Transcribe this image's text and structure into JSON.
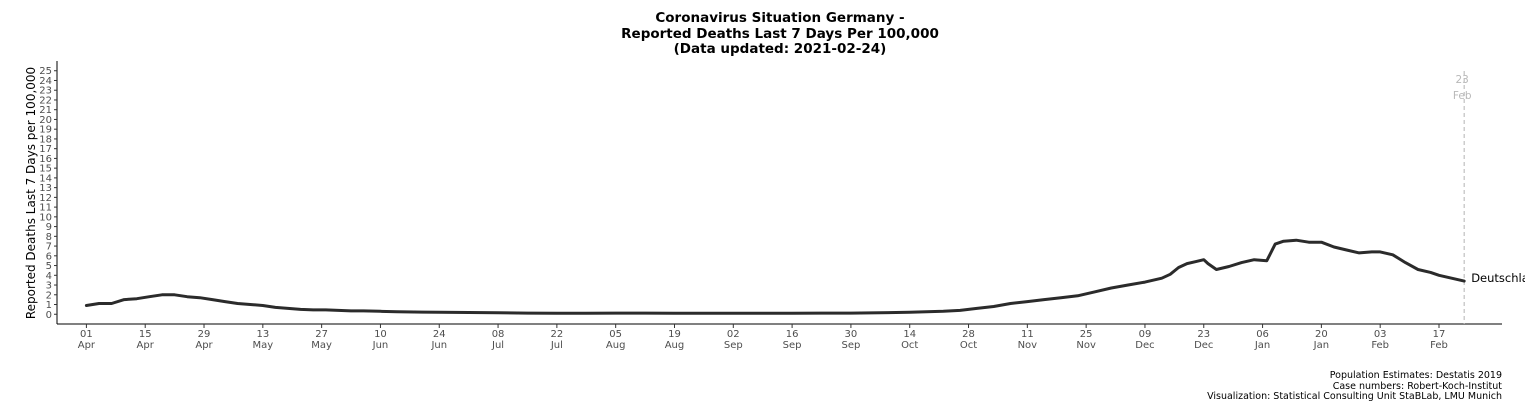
{
  "title_lines": [
    "Coronavirus Situation Germany -",
    "Reported Deaths Last 7 Days Per 100,000",
    "(Data updated: 2021-02-24)"
  ],
  "captions": [
    "Population Estimates: Destatis 2019",
    "Case numbers: Robert-Koch-Institut",
    "Visualization: Statistical Consulting Unit StaBLab, LMU Munich"
  ],
  "chart_data": {
    "type": "line",
    "title": "Coronavirus Situation Germany - Reported Deaths Last 7 Days Per 100,000 (Data updated: 2021-02-24)",
    "ylabel": "Reported Deaths Last 7 Days per 100,000",
    "xlabel": "",
    "ylim": [
      -1,
      26
    ],
    "xlim": [
      "2020-03-25",
      "2021-03-04"
    ],
    "grid": false,
    "y_ticks": [
      0,
      1,
      2,
      3,
      4,
      5,
      6,
      7,
      8,
      9,
      10,
      11,
      12,
      13,
      14,
      15,
      16,
      17,
      18,
      19,
      20,
      21,
      22,
      23,
      24,
      25
    ],
    "x_ticks": [
      {
        "date": "2020-04-01",
        "day": "01",
        "month": "Apr"
      },
      {
        "date": "2020-04-15",
        "day": "15",
        "month": "Apr"
      },
      {
        "date": "2020-04-29",
        "day": "29",
        "month": "Apr"
      },
      {
        "date": "2020-05-13",
        "day": "13",
        "month": "May"
      },
      {
        "date": "2020-05-27",
        "day": "27",
        "month": "May"
      },
      {
        "date": "2020-06-10",
        "day": "10",
        "month": "Jun"
      },
      {
        "date": "2020-06-24",
        "day": "24",
        "month": "Jun"
      },
      {
        "date": "2020-07-08",
        "day": "08",
        "month": "Jul"
      },
      {
        "date": "2020-07-22",
        "day": "22",
        "month": "Jul"
      },
      {
        "date": "2020-08-05",
        "day": "05",
        "month": "Aug"
      },
      {
        "date": "2020-08-19",
        "day": "19",
        "month": "Aug"
      },
      {
        "date": "2020-09-02",
        "day": "02",
        "month": "Sep"
      },
      {
        "date": "2020-09-16",
        "day": "16",
        "month": "Sep"
      },
      {
        "date": "2020-09-30",
        "day": "30",
        "month": "Sep"
      },
      {
        "date": "2020-10-14",
        "day": "14",
        "month": "Oct"
      },
      {
        "date": "2020-10-28",
        "day": "28",
        "month": "Oct"
      },
      {
        "date": "2020-11-11",
        "day": "11",
        "month": "Nov"
      },
      {
        "date": "2020-11-25",
        "day": "25",
        "month": "Nov"
      },
      {
        "date": "2020-12-09",
        "day": "09",
        "month": "Dec"
      },
      {
        "date": "2020-12-23",
        "day": "23",
        "month": "Dec"
      },
      {
        "date": "2021-01-06",
        "day": "06",
        "month": "Jan"
      },
      {
        "date": "2021-01-20",
        "day": "20",
        "month": "Jan"
      },
      {
        "date": "2021-02-03",
        "day": "03",
        "month": "Feb"
      },
      {
        "date": "2021-02-17",
        "day": "17",
        "month": "Feb"
      }
    ],
    "reference_line": {
      "date": "2021-02-23",
      "label_day": "23",
      "label_month": "Feb",
      "color": "#c0c0c0"
    },
    "series": [
      {
        "name": "Deutschland",
        "color": "#2b2b2b",
        "points": [
          [
            "2020-04-01",
            0.9
          ],
          [
            "2020-04-04",
            1.1
          ],
          [
            "2020-04-07",
            1.1
          ],
          [
            "2020-04-10",
            1.5
          ],
          [
            "2020-04-13",
            1.6
          ],
          [
            "2020-04-16",
            1.8
          ],
          [
            "2020-04-19",
            2.0
          ],
          [
            "2020-04-22",
            2.0
          ],
          [
            "2020-04-25",
            1.8
          ],
          [
            "2020-04-28",
            1.7
          ],
          [
            "2020-05-01",
            1.5
          ],
          [
            "2020-05-04",
            1.3
          ],
          [
            "2020-05-07",
            1.1
          ],
          [
            "2020-05-10",
            1.0
          ],
          [
            "2020-05-13",
            0.9
          ],
          [
            "2020-05-16",
            0.7
          ],
          [
            "2020-05-19",
            0.6
          ],
          [
            "2020-05-22",
            0.5
          ],
          [
            "2020-05-25",
            0.45
          ],
          [
            "2020-05-28",
            0.45
          ],
          [
            "2020-05-31",
            0.4
          ],
          [
            "2020-06-03",
            0.35
          ],
          [
            "2020-06-06",
            0.35
          ],
          [
            "2020-06-10",
            0.3
          ],
          [
            "2020-06-14",
            0.25
          ],
          [
            "2020-06-20",
            0.22
          ],
          [
            "2020-06-24",
            0.2
          ],
          [
            "2020-07-01",
            0.18
          ],
          [
            "2020-07-08",
            0.15
          ],
          [
            "2020-07-15",
            0.12
          ],
          [
            "2020-07-22",
            0.1
          ],
          [
            "2020-07-29",
            0.1
          ],
          [
            "2020-08-05",
            0.12
          ],
          [
            "2020-08-12",
            0.12
          ],
          [
            "2020-08-19",
            0.1
          ],
          [
            "2020-08-26",
            0.1
          ],
          [
            "2020-09-02",
            0.1
          ],
          [
            "2020-09-09",
            0.1
          ],
          [
            "2020-09-16",
            0.1
          ],
          [
            "2020-09-23",
            0.12
          ],
          [
            "2020-09-30",
            0.12
          ],
          [
            "2020-10-07",
            0.15
          ],
          [
            "2020-10-14",
            0.2
          ],
          [
            "2020-10-18",
            0.25
          ],
          [
            "2020-10-22",
            0.3
          ],
          [
            "2020-10-26",
            0.4
          ],
          [
            "2020-10-30",
            0.6
          ],
          [
            "2020-11-03",
            0.8
          ],
          [
            "2020-11-07",
            1.1
          ],
          [
            "2020-11-11",
            1.3
          ],
          [
            "2020-11-15",
            1.5
          ],
          [
            "2020-11-19",
            1.7
          ],
          [
            "2020-11-23",
            1.9
          ],
          [
            "2020-11-27",
            2.3
          ],
          [
            "2020-12-01",
            2.7
          ],
          [
            "2020-12-05",
            3.0
          ],
          [
            "2020-12-09",
            3.3
          ],
          [
            "2020-12-13",
            3.7
          ],
          [
            "2020-12-15",
            4.1
          ],
          [
            "2020-12-17",
            4.8
          ],
          [
            "2020-12-19",
            5.2
          ],
          [
            "2020-12-21",
            5.4
          ],
          [
            "2020-12-23",
            5.6
          ],
          [
            "2020-12-24",
            5.2
          ],
          [
            "2020-12-26",
            4.6
          ],
          [
            "2020-12-29",
            4.9
          ],
          [
            "2021-01-01",
            5.3
          ],
          [
            "2021-01-04",
            5.6
          ],
          [
            "2021-01-07",
            5.5
          ],
          [
            "2021-01-09",
            7.2
          ],
          [
            "2021-01-11",
            7.5
          ],
          [
            "2021-01-14",
            7.6
          ],
          [
            "2021-01-17",
            7.4
          ],
          [
            "2021-01-20",
            7.4
          ],
          [
            "2021-01-23",
            6.9
          ],
          [
            "2021-01-26",
            6.6
          ],
          [
            "2021-01-29",
            6.3
          ],
          [
            "2021-02-01",
            6.4
          ],
          [
            "2021-02-03",
            6.4
          ],
          [
            "2021-02-06",
            6.1
          ],
          [
            "2021-02-09",
            5.3
          ],
          [
            "2021-02-12",
            4.6
          ],
          [
            "2021-02-15",
            4.3
          ],
          [
            "2021-02-17",
            4.0
          ],
          [
            "2021-02-20",
            3.7
          ],
          [
            "2021-02-23",
            3.4
          ]
        ]
      }
    ]
  }
}
